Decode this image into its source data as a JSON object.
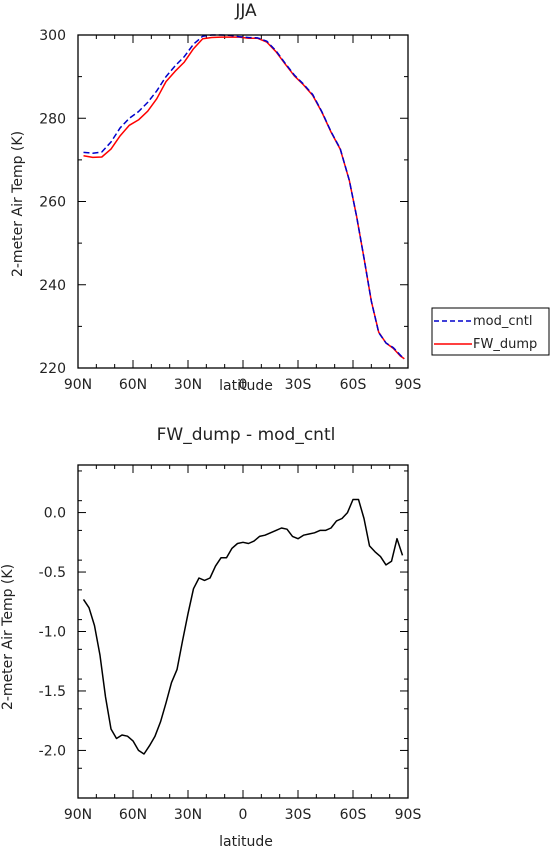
{
  "chart_data": [
    {
      "type": "line",
      "title": "JJA",
      "xlabel": "latitude",
      "ylabel": "2-meter Air Temp (K)",
      "x_ticks": [
        "90N",
        "60N",
        "30N",
        "0",
        "30S",
        "60S",
        "90S"
      ],
      "y_ticks": [
        "220",
        "240",
        "260",
        "280",
        "300"
      ],
      "xlim": [
        90,
        -90
      ],
      "ylim": [
        220,
        300
      ],
      "legend_position": "right",
      "series": [
        {
          "name": "mod_cntl",
          "color": "#0000cc",
          "style": "dashed",
          "x": [
            87,
            82,
            77,
            72,
            67,
            62,
            57,
            52,
            47,
            42,
            37,
            32,
            27,
            22,
            17,
            12,
            7,
            2,
            -3,
            -8,
            -13,
            -18,
            -23,
            -28,
            -33,
            -38,
            -43,
            -48,
            -53,
            -58,
            -62,
            -66,
            -70,
            -74,
            -78,
            -82,
            -86,
            -88
          ],
          "values": [
            271.8,
            271.6,
            271.9,
            274.3,
            277.7,
            280.0,
            281.6,
            283.8,
            286.6,
            290.0,
            292.6,
            294.8,
            297.8,
            299.7,
            300.0,
            300.0,
            299.9,
            299.6,
            299.4,
            299.3,
            298.5,
            296.2,
            293.2,
            290.4,
            288.2,
            285.7,
            281.6,
            276.8,
            272.7,
            265.1,
            256.3,
            246.4,
            236.1,
            228.5,
            226.0,
            224.9,
            223.0,
            222.2
          ]
        },
        {
          "name": "FW_dump",
          "color": "#ff0000",
          "style": "solid",
          "x": [
            87,
            82,
            77,
            72,
            67,
            62,
            57,
            52,
            47,
            42,
            37,
            32,
            27,
            22,
            17,
            12,
            7,
            2,
            -3,
            -8,
            -13,
            -18,
            -23,
            -28,
            -33,
            -38,
            -43,
            -48,
            -53,
            -58,
            -62,
            -66,
            -70,
            -74,
            -78,
            -82,
            -86,
            -88
          ],
          "values": [
            271.0,
            270.6,
            270.7,
            272.6,
            275.8,
            278.3,
            279.6,
            281.7,
            284.7,
            288.8,
            291.3,
            293.5,
            296.7,
            299.1,
            299.4,
            299.5,
            299.5,
            299.5,
            299.2,
            299.2,
            298.3,
            296.0,
            293.0,
            290.2,
            288.0,
            285.5,
            281.5,
            276.7,
            272.6,
            265.1,
            256.3,
            246.4,
            236.1,
            228.6,
            226.0,
            224.7,
            222.8,
            222.2
          ]
        }
      ]
    },
    {
      "type": "line",
      "title": "FW_dump - mod_cntl",
      "xlabel": "latitude",
      "ylabel": "2-meter Air Temp (K)",
      "x_ticks": [
        "90N",
        "60N",
        "30N",
        "0",
        "30S",
        "60S",
        "90S"
      ],
      "y_ticks": [
        "-2.0",
        "-1.5",
        "-1.0",
        "-0.5",
        "0.0"
      ],
      "xlim": [
        90,
        -90
      ],
      "ylim": [
        -2.4,
        0.4
      ],
      "series": [
        {
          "name": "",
          "color": "#000000",
          "style": "solid",
          "x": [
            87,
            84,
            81,
            78,
            75,
            72,
            69,
            66,
            63,
            60,
            57,
            54,
            51,
            48,
            45,
            42,
            39,
            36,
            33,
            30,
            27,
            24,
            21,
            18,
            15,
            12,
            9,
            6,
            3,
            0,
            -3,
            -6,
            -9,
            -12,
            -15,
            -18,
            -21,
            -24,
            -27,
            -30,
            -33,
            -36,
            -39,
            -42,
            -45,
            -48,
            -51,
            -54,
            -57,
            -60,
            -63,
            -66,
            -69,
            -72,
            -75,
            -78,
            -81,
            -84,
            -87
          ],
          "values": [
            -0.73,
            -0.8,
            -0.95,
            -1.2,
            -1.55,
            -1.82,
            -1.9,
            -1.87,
            -1.88,
            -1.92,
            -2.0,
            -2.03,
            -1.96,
            -1.88,
            -1.76,
            -1.6,
            -1.43,
            -1.32,
            -1.08,
            -0.85,
            -0.64,
            -0.55,
            -0.57,
            -0.55,
            -0.45,
            -0.38,
            -0.38,
            -0.3,
            -0.26,
            -0.25,
            -0.26,
            -0.24,
            -0.2,
            -0.19,
            -0.17,
            -0.15,
            -0.13,
            -0.14,
            -0.2,
            -0.22,
            -0.19,
            -0.18,
            -0.17,
            -0.15,
            -0.15,
            -0.13,
            -0.07,
            -0.05,
            0.0,
            0.11,
            0.11,
            -0.05,
            -0.28,
            -0.33,
            -0.37,
            -0.44,
            -0.41,
            -0.22,
            -0.36
          ]
        }
      ]
    }
  ],
  "legend": {
    "items": [
      {
        "label": "mod_cntl",
        "color": "#0000cc",
        "style": "dashed"
      },
      {
        "label": "FW_dump",
        "color": "#ff0000",
        "style": "solid"
      }
    ]
  }
}
